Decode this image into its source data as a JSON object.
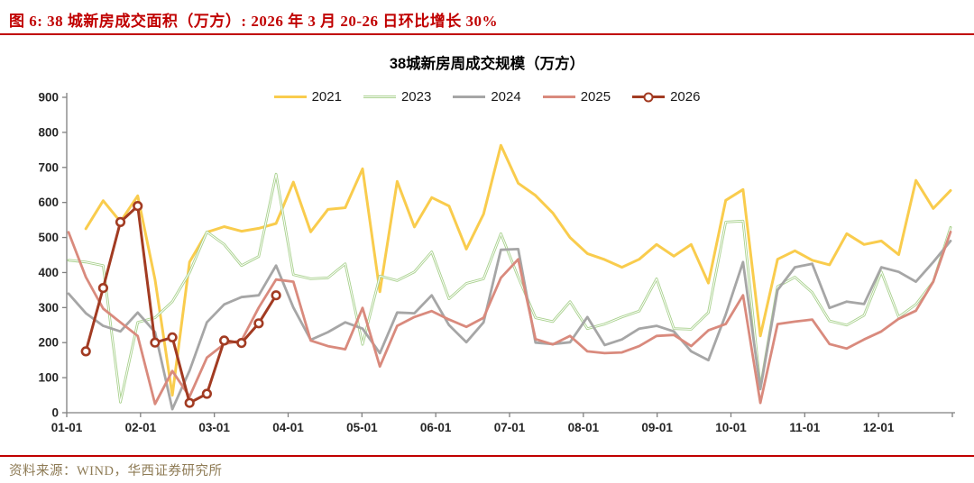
{
  "figure_caption": "图 6: 38 城新房成交面积（万方）: 2026 年 3 月 20-26 日环比增长 30%",
  "source_note": "资料来源：WIND，华西证券研究所",
  "colors": {
    "caption_red": "#C00000",
    "divider_red": "#C00000",
    "axis": "#808080",
    "tick_label": "#262626",
    "source_text": "#8E7B55",
    "background": "#FFFFFF"
  },
  "chart_data": {
    "type": "line",
    "title": "38城新房周成交规模（万方）",
    "xlabel": "",
    "ylabel": "",
    "ylim": [
      0,
      900
    ],
    "y_ticks": [
      0,
      100,
      200,
      300,
      400,
      500,
      600,
      700,
      800,
      900
    ],
    "x_tick_labels": [
      "01-01",
      "02-01",
      "03-01",
      "04-01",
      "05-01",
      "06-01",
      "07-01",
      "08-01",
      "09-01",
      "10-01",
      "11-01",
      "12-01"
    ],
    "grid": false,
    "legend_position": "top",
    "weeks_per_year": 52,
    "series": [
      {
        "name": "2021",
        "color": "#F9CC4D",
        "width": 3,
        "values": [
          null,
          525,
          605,
          545,
          619,
          380,
          50,
          430,
          515,
          531,
          518,
          526,
          540,
          658,
          516,
          580,
          585,
          696,
          345,
          660,
          530,
          614,
          590,
          467,
          567,
          763,
          655,
          620,
          570,
          500,
          454,
          437,
          415,
          438,
          480,
          447,
          480,
          370,
          606,
          637,
          219,
          438,
          462,
          435,
          422,
          511,
          480,
          490,
          451,
          663,
          583,
          634
        ]
      },
      {
        "name": "2023",
        "color": "#A9D18E",
        "width": 2.8,
        "hollow": true,
        "values": [
          435,
          430,
          420,
          30,
          258,
          271,
          317,
          400,
          516,
          480,
          420,
          446,
          681,
          394,
          382,
          385,
          425,
          195,
          390,
          377,
          402,
          459,
          325,
          369,
          382,
          511,
          387,
          271,
          260,
          317,
          240,
          253,
          273,
          290,
          382,
          240,
          238,
          286,
          544,
          547,
          72,
          360,
          387,
          343,
          262,
          250,
          278,
          402,
          273,
          309,
          374,
          529
        ]
      },
      {
        "name": "2024",
        "color": "#A6A6A6",
        "width": 2.8,
        "values": [
          340,
          284,
          248,
          232,
          286,
          230,
          10,
          120,
          258,
          309,
          330,
          335,
          420,
          300,
          208,
          230,
          258,
          240,
          170,
          286,
          284,
          335,
          250,
          201,
          258,
          465,
          467,
          200,
          196,
          201,
          273,
          193,
          209,
          240,
          248,
          232,
          175,
          150,
          280,
          430,
          67,
          350,
          415,
          425,
          299,
          317,
          310,
          415,
          402,
          374,
          430,
          490
        ]
      },
      {
        "name": "2025",
        "color": "#D98A7D",
        "width": 2.8,
        "values": [
          515,
          387,
          297,
          258,
          219,
          25,
          119,
          46,
          157,
          196,
          206,
          300,
          380,
          374,
          206,
          190,
          181,
          299,
          132,
          248,
          273,
          290,
          266,
          245,
          271,
          385,
          438,
          210,
          195,
          219,
          175,
          170,
          172,
          190,
          219,
          222,
          190,
          235,
          253,
          335,
          28,
          253,
          260,
          266,
          196,
          183,
          209,
          232,
          268,
          291,
          374,
          516
        ]
      },
      {
        "name": "2026",
        "color": "#A23B22",
        "width": 3,
        "markers": true,
        "start_index": 1,
        "values": [
          175,
          356,
          544,
          590,
          200,
          215,
          28,
          54,
          206,
          199,
          255,
          335
        ]
      }
    ]
  }
}
